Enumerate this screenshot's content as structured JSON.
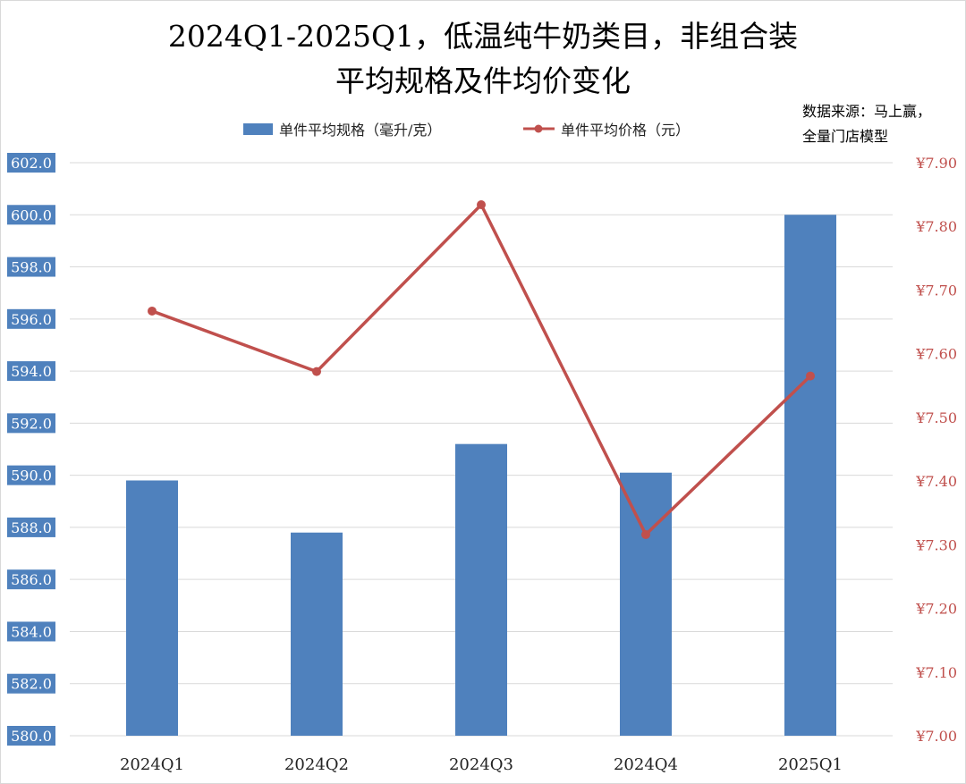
{
  "chart_data": {
    "type": "bar+line",
    "title_lines": [
      "2024Q1-2025Q1，低温纯牛奶类目，非组合装",
      "平均规格及件均价变化"
    ],
    "source_lines": [
      "数据来源：马上赢，",
      "全量门店模型"
    ],
    "categories": [
      "2024Q1",
      "2024Q2",
      "2024Q3",
      "2024Q4",
      "2025Q1"
    ],
    "series": [
      {
        "name": "单件平均规格（毫升/克）",
        "type": "bar",
        "axis": "left",
        "color": "#4f81bd",
        "values": [
          589.8,
          587.8,
          591.2,
          590.1,
          600.0
        ]
      },
      {
        "name": "单件平均价格（元）",
        "type": "line",
        "axis": "right",
        "color": "#c0504d",
        "values": [
          7.667,
          7.572,
          7.834,
          7.316,
          7.565
        ]
      }
    ],
    "left_axis": {
      "ylim": [
        580,
        602
      ],
      "ticks": [
        "580.0",
        "582.0",
        "584.0",
        "586.0",
        "588.0",
        "590.0",
        "592.0",
        "594.0",
        "596.0",
        "598.0",
        "600.0",
        "602.0"
      ]
    },
    "right_axis": {
      "ylim": [
        7.0,
        7.9
      ],
      "ticks": [
        "¥7.00",
        "¥7.10",
        "¥7.20",
        "¥7.30",
        "¥7.40",
        "¥7.50",
        "¥7.60",
        "¥7.70",
        "¥7.80",
        "¥7.90"
      ]
    },
    "grid": true,
    "legend_position": "top"
  }
}
